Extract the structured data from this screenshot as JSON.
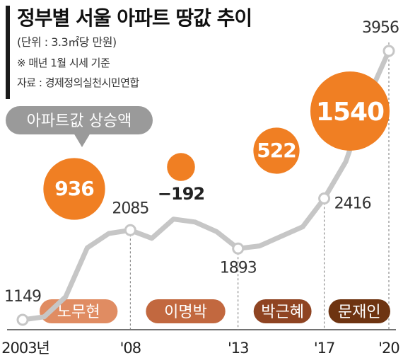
{
  "chart_data": {
    "type": "line",
    "title": "정부별 서울 아파트 땅값 추이",
    "subtitle": "(단위 : 3.3㎡당 만원)",
    "note": "※ 매년 1월 시세 기준",
    "source": "자료 : 경제정의실천시민연합",
    "x_tick_labels": [
      "2003년",
      "'08",
      "'13",
      "'17",
      "'20"
    ],
    "series": [
      {
        "values": [
          {
            "x": 2003,
            "y": 1149
          },
          {
            "x": 2004,
            "y": 1180
          },
          {
            "x": 2005,
            "y": 1390
          },
          {
            "x": 2006,
            "y": 1900
          },
          {
            "x": 2007,
            "y": 2050
          },
          {
            "x": 2008,
            "y": 2085
          },
          {
            "x": 2009,
            "y": 2000
          },
          {
            "x": 2010,
            "y": 2200
          },
          {
            "x": 2011,
            "y": 2170
          },
          {
            "x": 2012,
            "y": 2070
          },
          {
            "x": 2013,
            "y": 1893
          },
          {
            "x": 2014,
            "y": 1920
          },
          {
            "x": 2015,
            "y": 2020
          },
          {
            "x": 2016,
            "y": 2120
          },
          {
            "x": 2017,
            "y": 2416
          },
          {
            "x": 2018,
            "y": 2800
          },
          {
            "x": 2019,
            "y": 3450
          },
          {
            "x": 2020,
            "y": 3956
          }
        ]
      }
    ],
    "point_labels": [
      {
        "x": 2003,
        "y": 1149,
        "label": "1149"
      },
      {
        "x": 2008,
        "y": 2085,
        "label": "2085"
      },
      {
        "x": 2013,
        "y": 1893,
        "label": "1893"
      },
      {
        "x": 2017,
        "y": 2416,
        "label": "2416"
      },
      {
        "x": 2020,
        "y": 3956,
        "label": "3956"
      }
    ],
    "legend_bubble": "아파트값 상승액",
    "increases": [
      {
        "government": "노무현",
        "value": 936,
        "label": "936"
      },
      {
        "government": "이명박",
        "value": -192,
        "label": "−192"
      },
      {
        "government": "박근혜",
        "value": 522,
        "label": "522"
      },
      {
        "government": "문재인",
        "value": 1540,
        "label": "1540"
      }
    ],
    "periods": [
      {
        "name": "노무현",
        "start": 2003,
        "end": 2008,
        "color": "#e08c62"
      },
      {
        "name": "이명박",
        "start": 2008,
        "end": 2013,
        "color": "#c2683f"
      },
      {
        "name": "박근혜",
        "start": 2013,
        "end": 2017,
        "color": "#8f4422"
      },
      {
        "name": "문재인",
        "start": 2017,
        "end": 2020,
        "color": "#6e3411"
      }
    ],
    "colors": {
      "line": "#c6c6c6",
      "marker_fill": "#ffffff",
      "bubble_orange": "#f07f23",
      "bubble_gray": "#9a9a9a",
      "text": "#222222"
    },
    "xlim": [
      2003,
      2020
    ],
    "ylim": [
      1000,
      4000
    ]
  }
}
